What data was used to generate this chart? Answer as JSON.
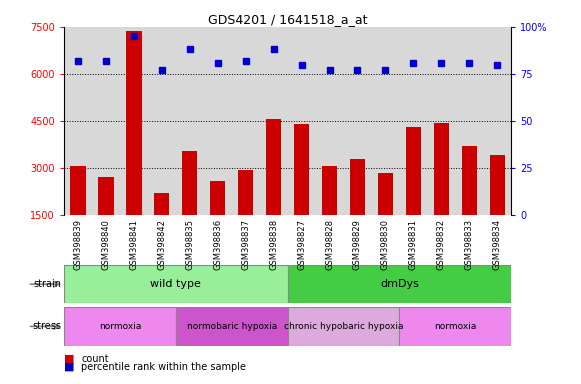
{
  "title": "GDS4201 / 1641518_a_at",
  "samples": [
    "GSM398839",
    "GSM398840",
    "GSM398841",
    "GSM398842",
    "GSM398835",
    "GSM398836",
    "GSM398837",
    "GSM398838",
    "GSM398827",
    "GSM398828",
    "GSM398829",
    "GSM398830",
    "GSM398831",
    "GSM398832",
    "GSM398833",
    "GSM398834"
  ],
  "counts": [
    3050,
    2700,
    7380,
    2200,
    3550,
    2600,
    2950,
    4550,
    4400,
    3050,
    3300,
    2850,
    4300,
    4450,
    3700,
    3400
  ],
  "percentile": [
    82,
    82,
    95,
    77,
    88,
    81,
    82,
    88,
    80,
    77,
    77,
    77,
    81,
    81,
    81,
    80
  ],
  "ylim_left": [
    1500,
    7500
  ],
  "ylim_right": [
    0,
    100
  ],
  "yticks_left": [
    1500,
    3000,
    4500,
    6000,
    7500
  ],
  "yticks_right": [
    0,
    25,
    50,
    75,
    100
  ],
  "bar_color": "#cc0000",
  "dot_color": "#0000cc",
  "bg_color": "#d8d8d8",
  "white_bg": "#ffffff",
  "strain_groups": [
    {
      "label": "wild type",
      "start": 0,
      "end": 8,
      "color": "#99ee99"
    },
    {
      "label": "dmDys",
      "start": 8,
      "end": 16,
      "color": "#44cc44"
    }
  ],
  "stress_groups": [
    {
      "label": "normoxia",
      "start": 0,
      "end": 4,
      "color": "#ee88ee"
    },
    {
      "label": "normobaric hypoxia",
      "start": 4,
      "end": 8,
      "color": "#cc55cc"
    },
    {
      "label": "chronic hypobaric hypoxia",
      "start": 8,
      "end": 12,
      "color": "#ddaadd"
    },
    {
      "label": "normoxia",
      "start": 12,
      "end": 16,
      "color": "#ee88ee"
    }
  ]
}
